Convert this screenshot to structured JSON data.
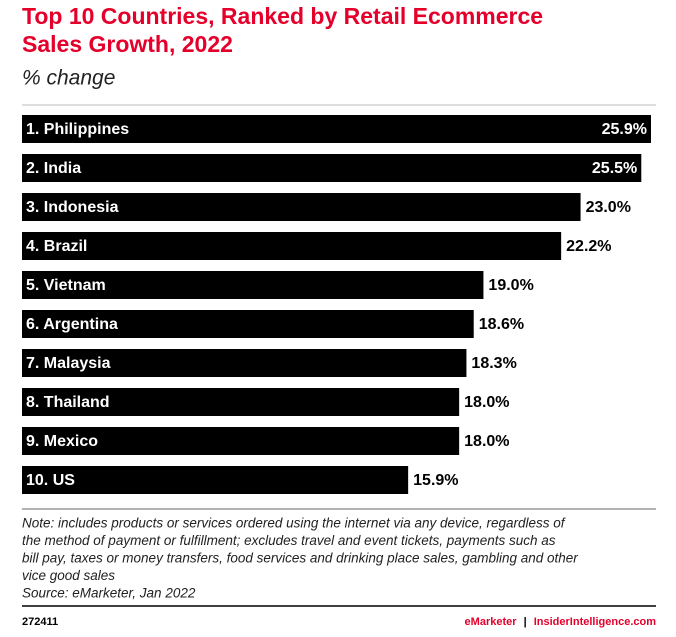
{
  "chart_data": {
    "type": "hbar",
    "title": [
      "Top 10 Countries, Ranked by Retail Ecommerce",
      "Sales Growth, 2022"
    ],
    "subtitle": "% change",
    "categories": [
      "1. Philippines",
      "2. India",
      "3. Indonesia",
      "4. Brazil",
      "5. Vietnam",
      "6. Argentina",
      "7. Malaysia",
      "8. Thailand",
      "9. Mexico",
      "10. US"
    ],
    "values": [
      25.9,
      25.5,
      23.0,
      22.2,
      19.0,
      18.6,
      18.3,
      18.0,
      18.0,
      15.9
    ],
    "value_labels": [
      "25.9%",
      "25.5%",
      "23.0%",
      "22.2%",
      "19.0%",
      "18.6%",
      "18.3%",
      "18.0%",
      "18.0%",
      "15.9%"
    ],
    "color": "#000000",
    "note": [
      "Note: includes products or services ordered using the internet via any device, regardless of",
      "the method of payment or fulfillment; excludes travel and event tickets, payments such as",
      "bill pay, taxes or money transfers, food services and drinking place sales, gambling and other",
      "vice good sales"
    ],
    "source": "Source: eMarketer, Jan 2022",
    "chart_id": "272411",
    "brand": "eMarketer",
    "separator": "|",
    "site": "InsiderIntelligence.com"
  }
}
